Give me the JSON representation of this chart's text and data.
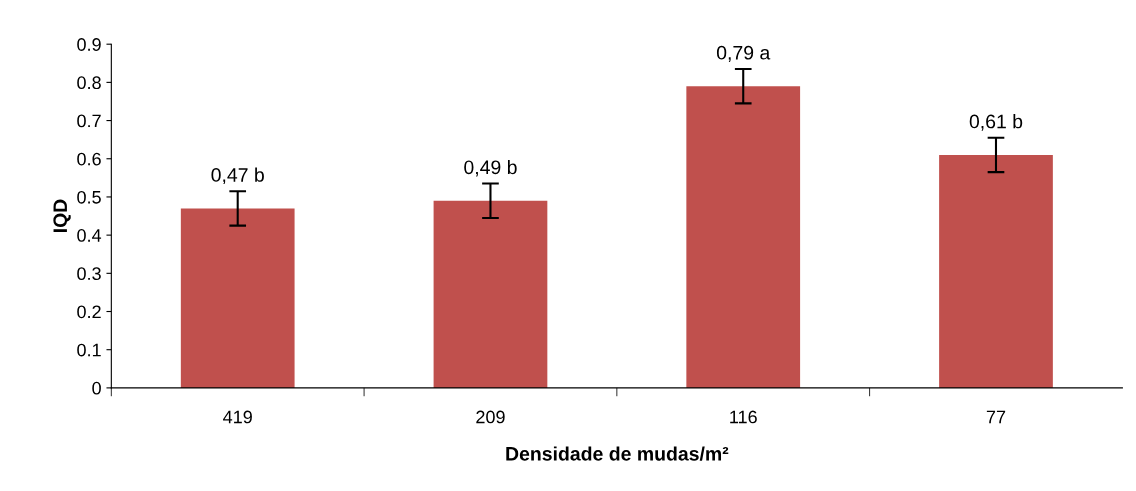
{
  "chart_data": {
    "type": "bar",
    "xlabel": "Densidade de mudas/m²",
    "ylabel": "IQD",
    "categories": [
      "419",
      "209",
      "116",
      "77"
    ],
    "values": [
      0.47,
      0.49,
      0.79,
      0.61
    ],
    "errors": [
      0.045,
      0.045,
      0.045,
      0.045
    ],
    "value_labels": [
      "0,47 b",
      "0,49 b",
      "0,79 a",
      "0,61 b"
    ],
    "color": "#c0504d",
    "ylim": [
      0,
      0.9
    ],
    "yticks": [
      0,
      0.1,
      0.2,
      0.3,
      0.4,
      0.5,
      0.6,
      0.7,
      0.8,
      0.9
    ],
    "grid": false
  }
}
